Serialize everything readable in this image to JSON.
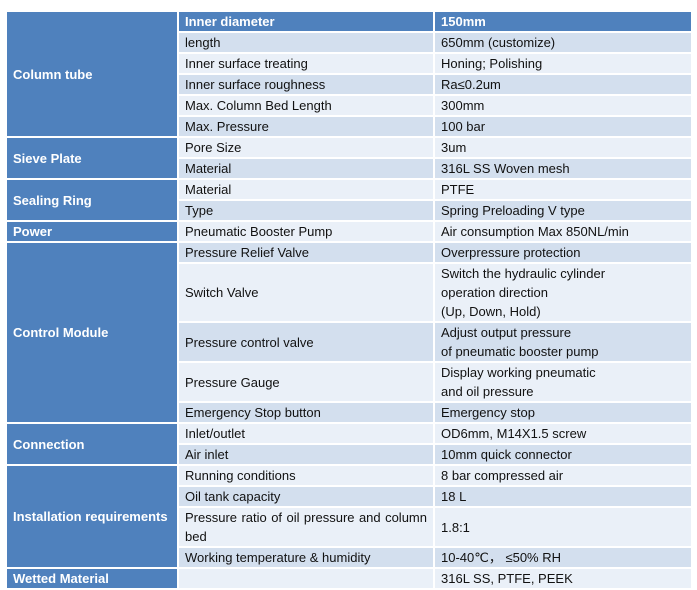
{
  "header": {
    "param": "Inner diameter",
    "value": "150mm"
  },
  "groups": [
    {
      "category": "Column tube",
      "rows": [
        {
          "param": "length",
          "value": [
            "650mm (customize)"
          ]
        },
        {
          "param": "Inner surface treating",
          "value": [
            "Honing; Polishing"
          ]
        },
        {
          "param": "Inner surface roughness",
          "value": [
            "Ra≤0.2um"
          ]
        },
        {
          "param": "Max. Column Bed Length",
          "value": [
            "300mm"
          ]
        },
        {
          "param": "Max. Pressure",
          "value": [
            "100 bar"
          ]
        }
      ]
    },
    {
      "category": "Sieve Plate",
      "rows": [
        {
          "param": "Pore Size",
          "value": [
            "3um"
          ]
        },
        {
          "param": "Material",
          "value": [
            "316L SS Woven mesh"
          ]
        }
      ]
    },
    {
      "category": "Sealing Ring",
      "rows": [
        {
          "param": "Material",
          "value": [
            "PTFE"
          ]
        },
        {
          "param": "Type",
          "value": [
            "Spring Preloading V type"
          ]
        }
      ]
    },
    {
      "category": "Power",
      "rows": [
        {
          "param": "Pneumatic Booster Pump",
          "value": [
            "Air consumption Max 850NL/min"
          ]
        }
      ]
    },
    {
      "category": "Control Module",
      "rows": [
        {
          "param": "Pressure Relief Valve",
          "value": [
            "Overpressure protection"
          ]
        },
        {
          "param": "Switch Valve",
          "value": [
            "Switch the hydraulic cylinder",
            "operation direction",
            "(Up, Down, Hold)"
          ]
        },
        {
          "param": "Pressure control valve",
          "value": [
            "Adjust output pressure",
            "of pneumatic booster pump"
          ]
        },
        {
          "param": "Pressure Gauge",
          "value": [
            "Display working pneumatic",
            "and oil pressure"
          ]
        },
        {
          "param": "Emergency Stop button",
          "value": [
            "Emergency stop"
          ]
        }
      ]
    },
    {
      "category": "Connection",
      "rows": [
        {
          "param": "Inlet/outlet",
          "value": [
            "OD6mm, M14X1.5 screw"
          ]
        },
        {
          "param": "Air inlet",
          "value": [
            "10mm quick connector"
          ]
        }
      ]
    },
    {
      "category": "Installation requirements",
      "rows": [
        {
          "param": "Running conditions",
          "value": [
            "8 bar compressed air"
          ]
        },
        {
          "param": "Oil tank capacity",
          "value": [
            "18 L"
          ]
        },
        {
          "param": "Pressure ratio of oil pressure and column bed",
          "value": [
            "1.8:1"
          ]
        },
        {
          "param": "Working temperature & humidity",
          "value": [
            "10-40℃，  ≤50% RH"
          ]
        }
      ]
    }
  ],
  "footer": {
    "category": "Wetted Material",
    "param": "",
    "value": "316L SS, PTFE, PEEK"
  }
}
